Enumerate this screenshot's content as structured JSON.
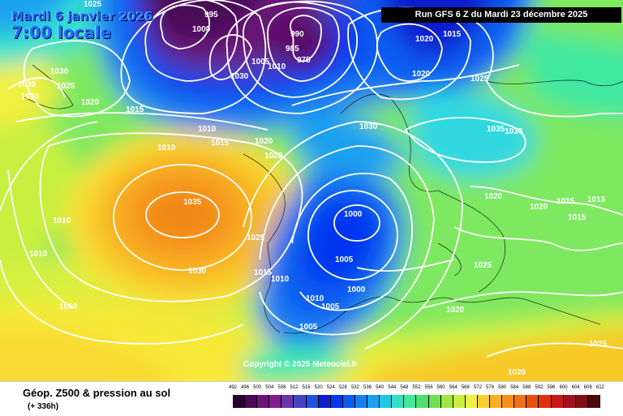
{
  "header": {
    "date": "Mardi 6 janvier 2026",
    "time": "7:00 locale",
    "run": "Run GFS 6 Z du Mardi 23 décembre 2025"
  },
  "copyright": "Copyright © 2025 Meteociel.fr",
  "footer": {
    "title": "Géop. Z500 & pression au sol",
    "subtitle": "(+ 336h)"
  },
  "scale": {
    "ticks": [
      "492",
      "496",
      "500",
      "504",
      "508",
      "512",
      "516",
      "520",
      "524",
      "528",
      "532",
      "536",
      "540",
      "544",
      "548",
      "552",
      "556",
      "560",
      "564",
      "568",
      "572",
      "576",
      "580",
      "584",
      "588",
      "592",
      "596",
      "600",
      "604",
      "608",
      "612"
    ],
    "colors": [
      "#2a0030",
      "#4a0858",
      "#6a1478",
      "#801e8c",
      "#6a34a8",
      "#4444c0",
      "#2050e0",
      "#0f1ecf",
      "#0636f0",
      "#0a5cf0",
      "#1a80f0",
      "#1aa0f0",
      "#20c8e8",
      "#30e0c8",
      "#40e8a0",
      "#50e070",
      "#70e050",
      "#a0e840",
      "#c8f040",
      "#f0f040",
      "#f8d030",
      "#f8b020",
      "#f89018",
      "#f07018",
      "#e85010",
      "#e03010",
      "#c81818",
      "#a01020",
      "#801018",
      "#500810"
    ]
  },
  "isobars": [
    {
      "v": "1025",
      "dark": false
    },
    {
      "v": "995",
      "dark": false
    },
    {
      "v": "1000",
      "dark": false
    },
    {
      "v": "990",
      "dark": false
    },
    {
      "v": "985",
      "dark": false
    },
    {
      "v": "1005",
      "dark": false
    },
    {
      "v": "975",
      "dark": false
    },
    {
      "v": "1010",
      "dark": false
    },
    {
      "v": "1030",
      "dark": false
    },
    {
      "v": "1020",
      "dark": false
    },
    {
      "v": "1015",
      "dark": false
    },
    {
      "v": "1020",
      "dark": false
    },
    {
      "v": "1025",
      "dark": false
    },
    {
      "v": "1030",
      "dark": false
    },
    {
      "v": "1025",
      "dark": false
    },
    {
      "v": "1030",
      "dark": false
    },
    {
      "v": "1030",
      "dark": false
    },
    {
      "v": "1020",
      "dark": false
    },
    {
      "v": "1015",
      "dark": false
    },
    {
      "v": "1010",
      "dark": false
    },
    {
      "v": "1010",
      "dark": false
    },
    {
      "v": "1015",
      "dark": false
    },
    {
      "v": "1020",
      "dark": false
    },
    {
      "v": "1020",
      "dark": false
    },
    {
      "v": "1030",
      "dark": false
    },
    {
      "v": "1035",
      "dark": false
    },
    {
      "v": "1030",
      "dark": false
    },
    {
      "v": "1035",
      "dark": false
    },
    {
      "v": "1010",
      "dark": false
    },
    {
      "v": "1025",
      "dark": false
    },
    {
      "v": "1000",
      "dark": false
    },
    {
      "v": "1010",
      "dark": false
    },
    {
      "v": "1030",
      "dark": false
    },
    {
      "v": "1015",
      "dark": false
    },
    {
      "v": "1010",
      "dark": false
    },
    {
      "v": "1005",
      "dark": false
    },
    {
      "v": "1000",
      "dark": false
    },
    {
      "v": "1010",
      "dark": false
    },
    {
      "v": "1005",
      "dark": false
    },
    {
      "v": "1005",
      "dark": false
    },
    {
      "v": "1010",
      "dark": false
    },
    {
      "v": "1020",
      "dark": false
    },
    {
      "v": "1020",
      "dark": false
    },
    {
      "v": "1015",
      "dark": false
    },
    {
      "v": "1015",
      "dark": false
    },
    {
      "v": "1015",
      "dark": false
    },
    {
      "v": "1025",
      "dark": false
    },
    {
      "v": "1020",
      "dark": false
    },
    {
      "v": "1020",
      "dark": false
    },
    {
      "v": "1025",
      "dark": false
    }
  ]
}
